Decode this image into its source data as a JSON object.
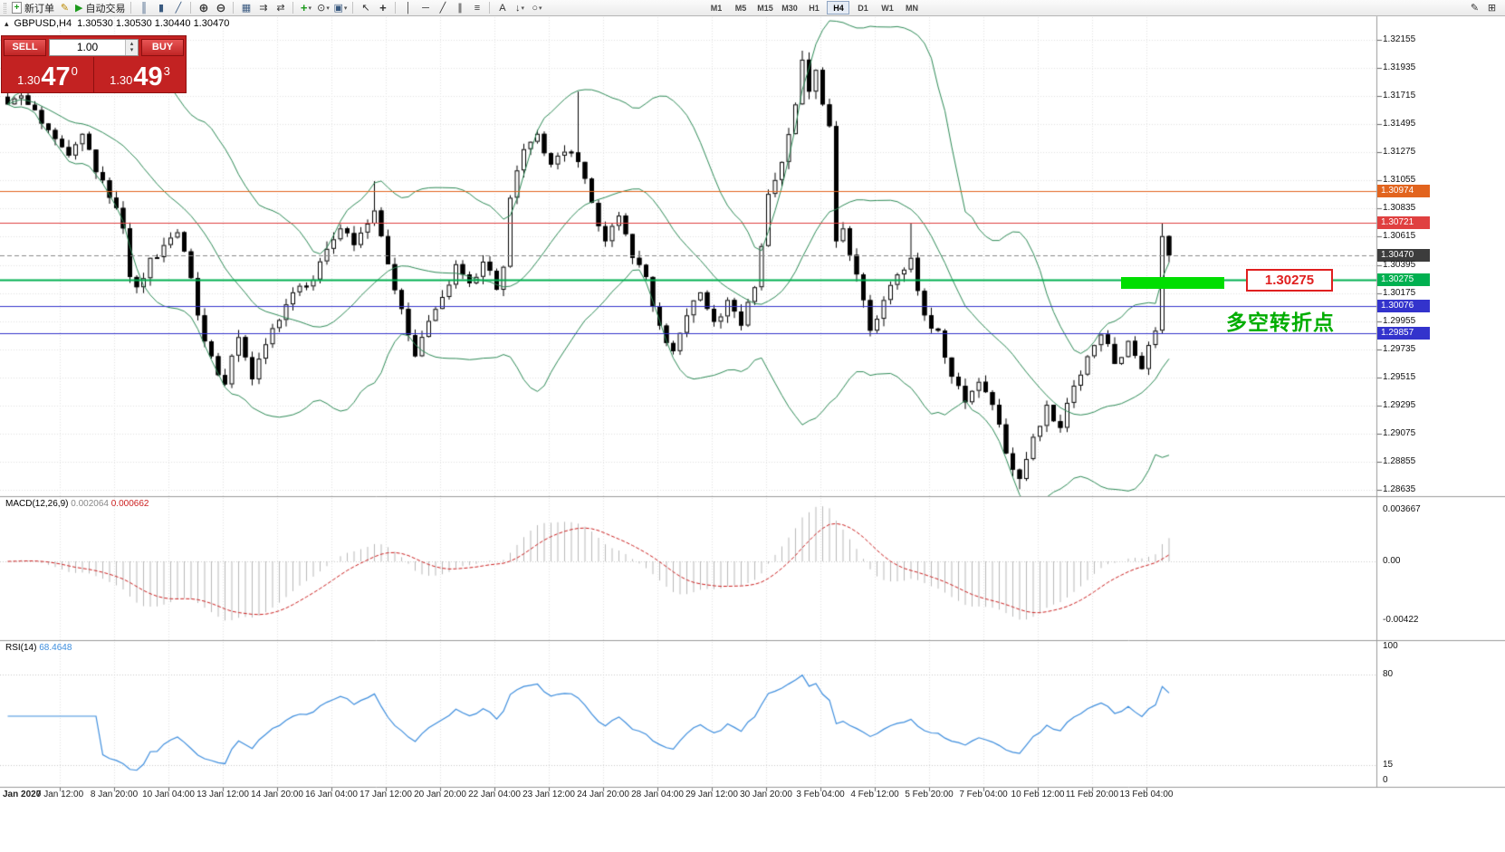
{
  "toolbar": {
    "new_order": "新订单",
    "auto_trading": "自动交易",
    "timeframes": [
      "M1",
      "M5",
      "M15",
      "M30",
      "H1",
      "H4",
      "D1",
      "W1",
      "MN"
    ],
    "active_timeframe": "H4"
  },
  "icons": {
    "new_order": "+",
    "metaeditor": "✎",
    "autotrading": "▶",
    "bar_chart": "║",
    "candlestick": "▮",
    "line_chart": "╱",
    "zoom_in": "⊕",
    "zoom_out": "⊖",
    "grid": "▦",
    "auto_scroll": "⇉",
    "chart_shift": "⇄",
    "indicators": "+",
    "periods": "⊙",
    "templates": "▣",
    "cursor": "↖",
    "crosshair": "+",
    "vertical_line": "│",
    "horizontal_line": "─",
    "trendline": "╱",
    "channel": "∥",
    "fibonacci": "≡",
    "text": "A",
    "arrows": "↓",
    "shapes": "○",
    "pencil": "✎",
    "window_grid": "⊞",
    "dropdown": "▾",
    "panel_toggle": "▴",
    "spinner_up": "▴",
    "spinner_down": "▾"
  },
  "chart_header": {
    "symbol_period": "GBPUSD,H4",
    "ohlc": "1.30530 1.30530 1.30440 1.30470"
  },
  "trade_panel": {
    "sell_label": "SELL",
    "buy_label": "BUY",
    "volume": "1.00",
    "sell_price": {
      "prefix": "1.30",
      "big": "47",
      "sup": "0"
    },
    "buy_price": {
      "prefix": "1.30",
      "big": "49",
      "sup": "3"
    }
  },
  "current_price": "1.30470",
  "price_scale": [
    "1.32155",
    "1.31935",
    "1.31715",
    "1.31495",
    "1.31275",
    "1.31055",
    "1.30835",
    "1.30615",
    "1.30395",
    "1.30175",
    "1.29955",
    "1.29735",
    "1.29515",
    "1.29295",
    "1.29075",
    "1.28855",
    "1.28635"
  ],
  "hlines": [
    {
      "price": 1.30974,
      "label": "1.30974",
      "color": "#e2641e",
      "width": 1
    },
    {
      "price": 1.30721,
      "label": "1.30721",
      "color": "#e04040",
      "width": 1
    },
    {
      "price": 1.30275,
      "label": "1.30275",
      "color": "#00b050",
      "width": 2
    },
    {
      "price": 1.30076,
      "label": "1.30076",
      "color": "#3333cc",
      "width": 1
    },
    {
      "price": 1.29857,
      "label": "1.29857",
      "color": "#3333cc",
      "width": 1
    }
  ],
  "annotations": {
    "level_label": "1.30275",
    "turning_point": "多空转折点"
  },
  "time_axis": [
    "Jan 2020",
    "7 Jan 12:00",
    "8 Jan 20:00",
    "10 Jan 04:00",
    "13 Jan 12:00",
    "14 Jan 20:00",
    "16 Jan 04:00",
    "17 Jan 12:00",
    "20 Jan 20:00",
    "22 Jan 04:00",
    "23 Jan 12:00",
    "24 Jan 20:00",
    "28 Jan 04:00",
    "29 Jan 12:00",
    "30 Jan 20:00",
    "3 Feb 04:00",
    "4 Feb 12:00",
    "5 Feb 20:00",
    "7 Feb 04:00",
    "10 Feb 12:00",
    "11 Feb 20:00",
    "13 Feb 04:00"
  ],
  "macd": {
    "name": "MACD(12,26,9)",
    "value_main": "0.002064",
    "value_signal": "0.000662",
    "scale": [
      "0.003667",
      "0.00",
      "-0.00422"
    ]
  },
  "rsi": {
    "name": "RSI(14)",
    "value": "68.4648",
    "scale": [
      "100",
      "80",
      "15",
      "0"
    ],
    "levels": [
      80,
      15
    ]
  },
  "chart_data": {
    "type": "candlestick",
    "symbol": "GBPUSD",
    "timeframe": "H4",
    "bars": 172,
    "price_axis": {
      "top": 1.32155,
      "bottom": 1.28635,
      "tick_step": 0.0022
    },
    "bollinger_color": "#2e8b57",
    "close_anchors": [
      [
        0,
        1.3165
      ],
      [
        2,
        1.3172
      ],
      [
        5,
        1.315
      ],
      [
        7,
        1.3138
      ],
      [
        9,
        1.3125
      ],
      [
        11,
        1.3142
      ],
      [
        13,
        1.3112
      ],
      [
        15,
        1.3092
      ],
      [
        17,
        1.3068
      ],
      [
        18,
        1.303
      ],
      [
        19,
        1.3022
      ],
      [
        21,
        1.3045
      ],
      [
        23,
        1.3055
      ],
      [
        25,
        1.3065
      ],
      [
        26,
        1.305
      ],
      [
        28,
        1.3
      ],
      [
        30,
        1.2968
      ],
      [
        32,
        1.2946
      ],
      [
        34,
        1.2983
      ],
      [
        36,
        1.295
      ],
      [
        39,
        1.299
      ],
      [
        42,
        1.3018
      ],
      [
        45,
        1.3028
      ],
      [
        47,
        1.3052
      ],
      [
        49,
        1.3068
      ],
      [
        51,
        1.3055
      ],
      [
        54,
        1.3082
      ],
      [
        56,
        1.304
      ],
      [
        58,
        1.3005
      ],
      [
        60,
        1.2968
      ],
      [
        63,
        1.3005
      ],
      [
        66,
        1.304
      ],
      [
        68,
        1.3025
      ],
      [
        70,
        1.3042
      ],
      [
        72,
        1.302
      ],
      [
        73,
        1.3038
      ],
      [
        74,
        1.3092
      ],
      [
        76,
        1.313
      ],
      [
        78,
        1.3142
      ],
      [
        80,
        1.3118
      ],
      [
        82,
        1.3128
      ],
      [
        84,
        1.312
      ],
      [
        86,
        1.3088
      ],
      [
        88,
        1.3058
      ],
      [
        90,
        1.3078
      ],
      [
        92,
        1.3045
      ],
      [
        94,
        1.303
      ],
      [
        96,
        1.2992
      ],
      [
        98,
        1.2972
      ],
      [
        100,
        1.3
      ],
      [
        102,
        1.3018
      ],
      [
        104,
        1.2995
      ],
      [
        106,
        1.3012
      ],
      [
        108,
        1.2992
      ],
      [
        110,
        1.3022
      ],
      [
        112,
        1.3095
      ],
      [
        114,
        1.312
      ],
      [
        116,
        1.3165
      ],
      [
        117,
        1.32
      ],
      [
        118,
        1.3175
      ],
      [
        119,
        1.3192
      ],
      [
        120,
        1.3165
      ],
      [
        121,
        1.3148
      ],
      [
        122,
        1.3058
      ],
      [
        123,
        1.3068
      ],
      [
        125,
        1.3032
      ],
      [
        127,
        1.2988
      ],
      [
        129,
        1.3012
      ],
      [
        131,
        1.3032
      ],
      [
        133,
        1.3045
      ],
      [
        135,
        1.3
      ],
      [
        137,
        1.2988
      ],
      [
        139,
        1.2952
      ],
      [
        141,
        1.2932
      ],
      [
        143,
        1.2948
      ],
      [
        145,
        1.293
      ],
      [
        147,
        1.2892
      ],
      [
        149,
        1.2872
      ],
      [
        151,
        1.2905
      ],
      [
        153,
        1.293
      ],
      [
        155,
        1.2912
      ],
      [
        157,
        1.2945
      ],
      [
        159,
        1.2968
      ],
      [
        161,
        1.2985
      ],
      [
        163,
        1.2962
      ],
      [
        165,
        1.298
      ],
      [
        167,
        1.2958
      ],
      [
        169,
        1.2988
      ],
      [
        170,
        1.3062
      ],
      [
        171,
        1.3047
      ]
    ],
    "key_wicks": [
      [
        54,
        "h",
        1.3105
      ],
      [
        84,
        "h",
        1.3175
      ],
      [
        117,
        "h",
        1.3207
      ],
      [
        133,
        "h",
        1.3072
      ],
      [
        149,
        "l",
        1.2864
      ],
      [
        170,
        "h",
        1.3072
      ]
    ],
    "indicators": [
      "Bollinger Bands (20)",
      "MACD(12,26,9)",
      "RSI(14)"
    ]
  }
}
